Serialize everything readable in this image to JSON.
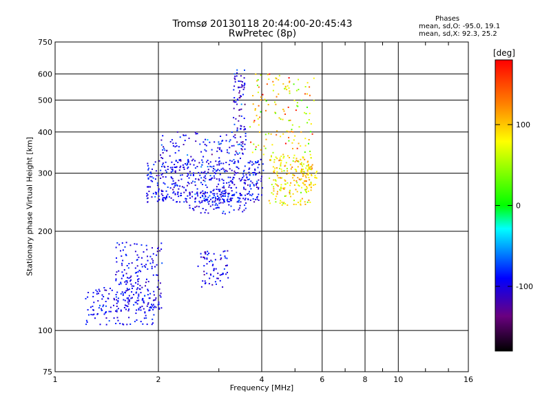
{
  "chart_data": {
    "type": "scatter",
    "title": "Tromsø 20130118 20:44:00-20:45:43",
    "subtitle": "RwPretec (8p)",
    "xlabel": "Frequency [MHz]",
    "ylabel": "Stationary phase Virtual Height [km]",
    "x_scale": "log",
    "y_scale": "log",
    "xlim": [
      1,
      16
    ],
    "ylim": [
      75,
      750
    ],
    "x_ticks": [
      1,
      2,
      4,
      6,
      8,
      10,
      16
    ],
    "y_ticks": [
      75,
      100,
      200,
      300,
      400,
      500,
      600,
      750
    ],
    "grid": true,
    "phase_stats": {
      "title": "Phases",
      "o_line": "mean, sd,O: -95.0, 19.1",
      "x_line": "mean, sd,X:  92.3, 25.2"
    },
    "colorbar": {
      "label": "[deg]",
      "range": [
        -180,
        180
      ],
      "ticks": [
        100,
        0,
        -100
      ],
      "colormap": "rainbow: black (-180) → purple → blue → cyan → green → yellow → orange → red (+180)"
    },
    "clusters": [
      {
        "desc": "o-mode E/F1 lower trace",
        "x": [
          1.22,
          1.95
        ],
        "y": [
          104,
          135
        ],
        "n": 150,
        "phase": -95,
        "sd": 12
      },
      {
        "desc": "o-mode rising trace",
        "x": [
          1.5,
          2.05
        ],
        "y": [
          115,
          185
        ],
        "n": 170,
        "phase": -95,
        "sd": 12
      },
      {
        "desc": "o-mode F1 cusp",
        "x": [
          2.6,
          3.2
        ],
        "y": [
          135,
          175
        ],
        "n": 70,
        "phase": -95,
        "sd": 15
      },
      {
        "desc": "o-mode F2 band",
        "x": [
          1.85,
          4.05
        ],
        "y": [
          245,
          330
        ],
        "n": 480,
        "phase": -95,
        "sd": 15
      },
      {
        "desc": "o-mode lower F2",
        "x": [
          2.45,
          3.6
        ],
        "y": [
          225,
          265
        ],
        "n": 100,
        "phase": -95,
        "sd": 15
      },
      {
        "desc": "o-mode F2 spread",
        "x": [
          2.0,
          3.5
        ],
        "y": [
          320,
          400
        ],
        "n": 100,
        "phase": -95,
        "sd": 18
      },
      {
        "desc": "o-mode critical spread",
        "x": [
          3.3,
          3.6
        ],
        "y": [
          340,
          620
        ],
        "n": 90,
        "phase": -100,
        "sd": 20
      },
      {
        "desc": "x-mode F2 band",
        "x": [
          4.2,
          5.6
        ],
        "y": [
          240,
          340
        ],
        "n": 180,
        "phase": 92,
        "sd": 25
      },
      {
        "desc": "x-mode spread",
        "x": [
          3.7,
          5.7
        ],
        "y": [
          340,
          600
        ],
        "n": 140,
        "phase": 92,
        "sd": 40
      },
      {
        "desc": "x-mode trace",
        "x": [
          5.2,
          5.8
        ],
        "y": [
          270,
          320
        ],
        "n": 50,
        "phase": 95,
        "sd": 20
      }
    ]
  }
}
